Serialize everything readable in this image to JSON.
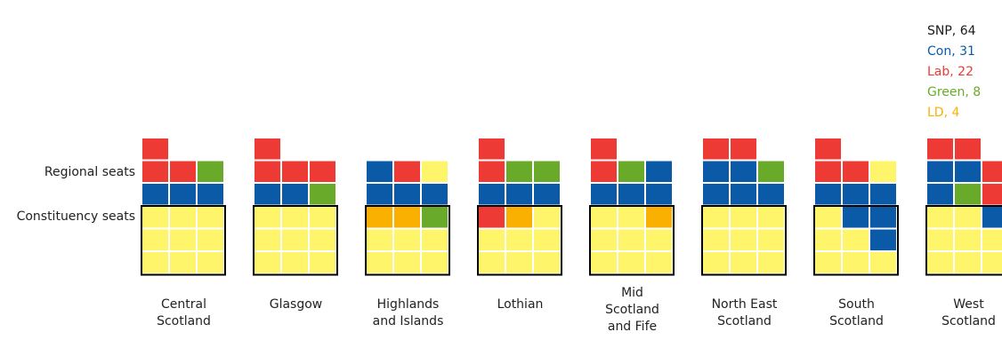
{
  "chart_data": {
    "type": "waffle",
    "title": "",
    "row_labels": {
      "regional": "Regional seats",
      "constituency": "Constituency seats"
    },
    "legend": [
      {
        "party": "SNP",
        "label": "SNP, 64",
        "color": "#1a1a1a"
      },
      {
        "party": "Con",
        "label": "Con, 31",
        "color": "#0a5aa8"
      },
      {
        "party": "Lab",
        "label": "Lab, 22",
        "color": "#ee3a34"
      },
      {
        "party": "Green",
        "label": "Green, 8",
        "color": "#6aaa2a"
      },
      {
        "party": "LD",
        "label": "LD, 4",
        "color": "#f9b000"
      }
    ],
    "fill_colors": {
      "SNP": "#fff56a",
      "Con": "#0a5aa8",
      "Lab": "#ee3a34",
      "Green": "#6aaa2a",
      "LD": "#f9b000"
    },
    "regions": [
      {
        "name": "Central\nScotland",
        "regional": [
          "Lab",
          null,
          null,
          "Lab",
          "Lab",
          "Green",
          "Con",
          "Con",
          "Con"
        ],
        "constituency": [
          "SNP",
          "SNP",
          "SNP",
          "SNP",
          "SNP",
          "SNP",
          "SNP",
          "SNP",
          "SNP"
        ]
      },
      {
        "name": "Glasgow",
        "regional": [
          "Lab",
          null,
          null,
          "Lab",
          "Lab",
          "Lab",
          "Con",
          "Con",
          "Green"
        ],
        "constituency": [
          "SNP",
          "SNP",
          "SNP",
          "SNP",
          "SNP",
          "SNP",
          "SNP",
          "SNP",
          "SNP"
        ]
      },
      {
        "name": "Highlands\nand Islands",
        "regional": [
          null,
          null,
          null,
          "Con",
          "Lab",
          "SNP",
          "Con",
          "Con",
          "Con"
        ],
        "constituency": [
          "LD",
          "LD",
          "Green",
          "SNP",
          "SNP",
          "SNP",
          "SNP",
          "SNP",
          "SNP"
        ]
      },
      {
        "name": "Lothian",
        "regional": [
          "Lab",
          null,
          null,
          "Lab",
          "Green",
          "Green",
          "Con",
          "Con",
          "Con"
        ],
        "constituency": [
          "Lab",
          "LD",
          "SNP",
          "SNP",
          "SNP",
          "SNP",
          "SNP",
          "SNP",
          "SNP"
        ]
      },
      {
        "name": "Mid\nScotland\nand Fife",
        "regional": [
          "Lab",
          null,
          null,
          "Lab",
          "Green",
          "Con",
          "Con",
          "Con",
          "Con"
        ],
        "constituency": [
          "SNP",
          "SNP",
          "LD",
          "SNP",
          "SNP",
          "SNP",
          "SNP",
          "SNP",
          "SNP"
        ]
      },
      {
        "name": "North East\nScotland",
        "regional": [
          "Lab",
          "Lab",
          null,
          "Con",
          "Con",
          "Green",
          "Con",
          "Con",
          "Con"
        ],
        "constituency": [
          "SNP",
          "SNP",
          "SNP",
          "SNP",
          "SNP",
          "SNP",
          "SNP",
          "SNP",
          "SNP"
        ]
      },
      {
        "name": "South\nScotland",
        "regional": [
          "Lab",
          null,
          null,
          "Lab",
          "Lab",
          "SNP",
          "Con",
          "Con",
          "Con"
        ],
        "constituency": [
          "SNP",
          "Con",
          "Con",
          "SNP",
          "SNP",
          "Con",
          "SNP",
          "SNP",
          "SNP"
        ]
      },
      {
        "name": "West\nScotland",
        "regional": [
          "Lab",
          "Lab",
          null,
          "Con",
          "Con",
          "Lab",
          "Con",
          "Green",
          "Lab"
        ],
        "constituency": [
          "SNP",
          "SNP",
          "Con",
          "SNP",
          "SNP",
          "SNP",
          "SNP",
          "SNP",
          "SNP"
        ]
      }
    ]
  }
}
